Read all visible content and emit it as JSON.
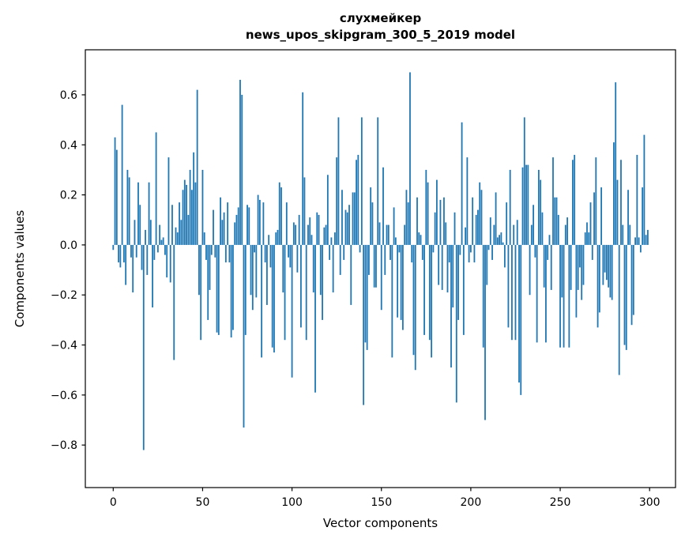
{
  "window": {
    "title": "слухмейкер"
  },
  "chart_data": {
    "type": "bar",
    "title": "слухмейкер",
    "subtitle": "news_upos_skipgram_300_5_2019 model",
    "xlabel": "Vector components",
    "ylabel": "Components values",
    "x_ticks": [
      0,
      50,
      100,
      150,
      200,
      250,
      300
    ],
    "y_ticks": [
      0.6,
      0.4,
      0.2,
      0.0,
      -0.2,
      -0.4,
      -0.6,
      -0.8
    ],
    "xlim": [
      -15.6,
      314.5
    ],
    "ylim": [
      -0.97,
      0.78
    ],
    "grid": false,
    "legend": "none",
    "bar_color": "#1f77b4",
    "n_components": 300,
    "values": [
      -0.02,
      0.43,
      0.38,
      -0.07,
      -0.09,
      0.56,
      -0.07,
      -0.16,
      0.3,
      0.27,
      -0.05,
      -0.19,
      0.1,
      -0.05,
      0.25,
      0.16,
      -0.1,
      -0.82,
      0.06,
      -0.12,
      0.25,
      0.1,
      -0.25,
      -0.06,
      0.45,
      -0.03,
      0.08,
      0.02,
      0.03,
      -0.04,
      -0.13,
      0.35,
      -0.15,
      0.16,
      -0.46,
      0.07,
      0.05,
      0.17,
      0.1,
      0.22,
      0.26,
      0.24,
      0.12,
      0.3,
      0.22,
      0.37,
      0.25,
      0.62,
      -0.2,
      -0.38,
      0.3,
      0.05,
      -0.06,
      -0.3,
      -0.18,
      -0.04,
      0.14,
      -0.05,
      -0.35,
      -0.36,
      0.19,
      0.1,
      0.13,
      -0.07,
      0.17,
      -0.07,
      -0.37,
      -0.34,
      0.09,
      0.12,
      0.15,
      0.66,
      0.6,
      -0.73,
      -0.36,
      0.16,
      0.15,
      -0.2,
      -0.26,
      -0.03,
      -0.21,
      0.2,
      0.18,
      -0.45,
      0.17,
      -0.07,
      -0.24,
      0.04,
      -0.09,
      -0.41,
      -0.43,
      0.05,
      0.06,
      0.25,
      0.23,
      -0.19,
      -0.38,
      0.17,
      -0.05,
      -0.09,
      -0.53,
      0.09,
      0.08,
      -0.11,
      0.12,
      -0.33,
      0.61,
      0.27,
      -0.38,
      0.08,
      0.11,
      0.04,
      -0.19,
      -0.59,
      0.13,
      0.12,
      -0.2,
      -0.3,
      0.07,
      0.08,
      0.28,
      -0.06,
      0.03,
      -0.19,
      0.05,
      0.35,
      0.51,
      -0.12,
      0.22,
      -0.06,
      0.14,
      0.13,
      0.16,
      -0.24,
      0.21,
      0.21,
      0.34,
      0.36,
      -0.03,
      0.51,
      -0.64,
      -0.39,
      -0.42,
      -0.12,
      0.23,
      0.17,
      -0.17,
      -0.17,
      0.51,
      0.09,
      -0.26,
      0.31,
      -0.12,
      0.08,
      0.08,
      -0.06,
      -0.45,
      0.15,
      0.03,
      -0.29,
      -0.03,
      -0.3,
      -0.34,
      0.08,
      0.22,
      0.17,
      0.69,
      -0.07,
      -0.44,
      -0.5,
      0.19,
      0.05,
      0.04,
      -0.06,
      -0.36,
      0.3,
      0.25,
      -0.38,
      -0.45,
      -0.03,
      0.13,
      0.26,
      -0.16,
      0.18,
      -0.18,
      0.19,
      0.09,
      -0.19,
      -0.07,
      -0.49,
      -0.25,
      0.13,
      -0.63,
      -0.3,
      -0.04,
      0.49,
      -0.36,
      0.07,
      0.35,
      -0.07,
      -0.03,
      0.19,
      -0.07,
      0.12,
      0.14,
      0.25,
      0.22,
      -0.41,
      -0.7,
      -0.16,
      -0.02,
      0.11,
      -0.06,
      0.08,
      0.21,
      0.03,
      0.04,
      0.05,
      0.01,
      -0.09,
      0.17,
      -0.33,
      0.3,
      -0.38,
      0.08,
      -0.38,
      0.1,
      -0.55,
      -0.6,
      0.31,
      0.51,
      0.32,
      0.32,
      -0.2,
      0.08,
      0.16,
      -0.05,
      -0.39,
      0.3,
      0.26,
      0.13,
      -0.17,
      -0.39,
      -0.06,
      0.04,
      -0.18,
      0.35,
      0.19,
      0.19,
      0.12,
      -0.41,
      -0.21,
      -0.41,
      0.08,
      0.11,
      -0.41,
      -0.18,
      0.34,
      0.36,
      -0.29,
      -0.18,
      -0.09,
      -0.22,
      -0.16,
      0.05,
      0.09,
      0.05,
      0.17,
      -0.06,
      0.21,
      0.35,
      -0.33,
      -0.27,
      0.23,
      -0.16,
      -0.11,
      -0.14,
      -0.17,
      -0.21,
      -0.22,
      0.41,
      0.65,
      0.26,
      -0.52,
      0.34,
      0.08,
      -0.4,
      -0.42,
      0.22,
      0.08,
      -0.32,
      -0.28,
      0.03,
      0.36,
      0.03,
      -0.03,
      0.23,
      0.44,
      0.04,
      0.06
    ]
  }
}
